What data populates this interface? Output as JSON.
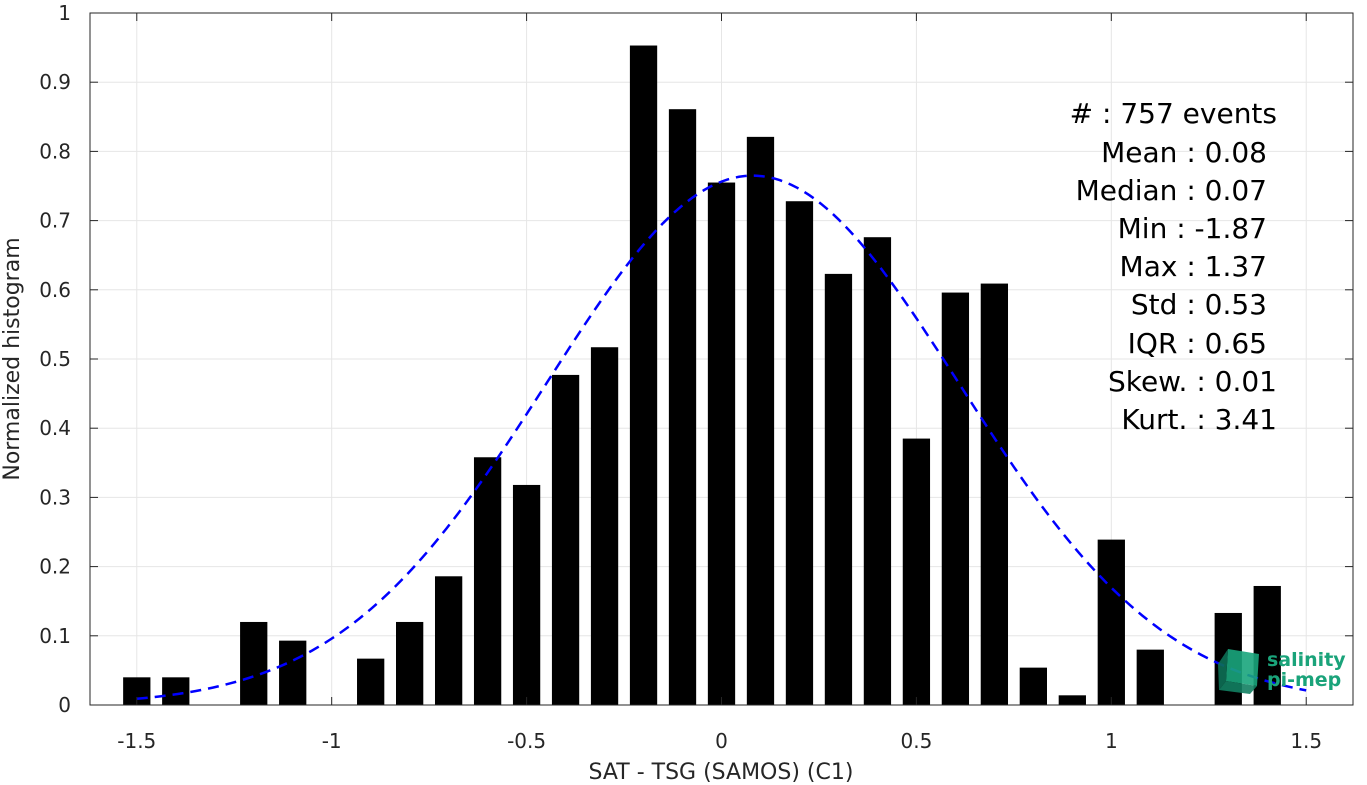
{
  "chart_data": {
    "type": "bar",
    "xlabel": "SAT - TSG (SAMOS) (C1)",
    "ylabel": "Normalized histogram",
    "xlim": [
      -1.62,
      1.62
    ],
    "ylim": [
      0,
      1
    ],
    "xticks": [
      -1.5,
      -1,
      -0.5,
      0,
      0.5,
      1,
      1.5
    ],
    "xtick_labels": [
      "-1.5",
      "-1",
      "-0.5",
      "0",
      "0.5",
      "1",
      "1.5"
    ],
    "yticks": [
      0,
      0.1,
      0.2,
      0.3,
      0.4,
      0.5,
      0.6,
      0.7,
      0.8,
      0.9,
      1
    ],
    "ytick_labels": [
      "0",
      "0.1",
      "0.2",
      "0.3",
      "0.4",
      "0.5",
      "0.6",
      "0.7",
      "0.8",
      "0.9",
      "1"
    ],
    "grid": true,
    "bar_width": 0.07,
    "bar_color": "#000000",
    "x": [
      -1.5,
      -1.4,
      -1.2,
      -1.1,
      -0.9,
      -0.8,
      -0.7,
      -0.6,
      -0.5,
      -0.4,
      -0.3,
      -0.2,
      -0.1,
      0.0,
      0.1,
      0.2,
      0.3,
      0.4,
      0.5,
      0.6,
      0.7,
      0.8,
      0.9,
      1.0,
      1.1,
      1.3,
      1.4
    ],
    "values": [
      0.04,
      0.04,
      0.12,
      0.093,
      0.067,
      0.12,
      0.186,
      0.358,
      0.318,
      0.477,
      0.517,
      0.953,
      0.861,
      0.755,
      0.821,
      0.728,
      0.623,
      0.676,
      0.385,
      0.596,
      0.609,
      0.054,
      0.014,
      0.239,
      0.08,
      0.133,
      0.172
    ],
    "fit_curve": {
      "type": "normal",
      "mean": 0.08,
      "std": 0.53,
      "peak": 0.765,
      "x_range": [
        -1.5,
        1.5
      ],
      "color": "#0000ff",
      "style": "dashed"
    },
    "annotations": [
      "#  : 757 events",
      "Mean : 0.08",
      "Median : 0.07",
      "Min : -1.87",
      "Max : 1.37",
      "Std : 0.53",
      "IQR : 0.65",
      "Skew. : 0.01",
      "Kurt. : 3.41"
    ]
  },
  "logo": {
    "line1": "salinity",
    "line2": "pi-mep",
    "color": "#1aa37a"
  }
}
